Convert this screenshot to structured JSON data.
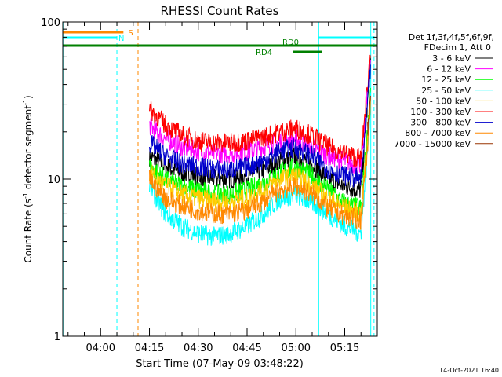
{
  "chart_data": {
    "type": "line",
    "title": "RHESSI Count Rates",
    "xlabel": "Start Time (07-May-09 03:48:22)",
    "ylabel_parts": [
      "Count Rate (s",
      "-1",
      " detector segment",
      "-1",
      ")"
    ],
    "ylog": true,
    "ylim": [
      1,
      100
    ],
    "y_ticks": [
      {
        "value": 1,
        "label": "1"
      },
      {
        "value": 10,
        "label": "10"
      },
      {
        "value": 100,
        "label": "100"
      }
    ],
    "xlim_minutes": [
      "03:48:22",
      "05:25:00"
    ],
    "x_ticks": [
      "04:00",
      "04:15",
      "04:30",
      "04:45",
      "05:00",
      "05:15"
    ],
    "legend_header": [
      "Det 1f,3f,4f,5f,6f,9f,",
      "FDecim 1, Att 0"
    ],
    "series": [
      {
        "name": "3 - 6 keV",
        "color": "#000000",
        "x": [
          "04:15",
          "04:20",
          "04:25",
          "04:30",
          "04:35",
          "04:40",
          "04:45",
          "04:50",
          "04:55",
          "05:00",
          "05:05",
          "05:10",
          "05:15",
          "05:20",
          "05:22",
          "05:23"
        ],
        "values": [
          14,
          12,
          11,
          10.5,
          10,
          10,
          10.5,
          11.5,
          13,
          14,
          12.5,
          10,
          9,
          8.5,
          30,
          60
        ]
      },
      {
        "name": "6 - 12 keV",
        "color": "#ff00ff",
        "x": [
          "04:15",
          "04:20",
          "04:25",
          "04:30",
          "04:35",
          "04:40",
          "04:45",
          "04:50",
          "04:55",
          "05:00",
          "05:05",
          "05:10",
          "05:15",
          "05:20",
          "05:22",
          "05:23"
        ],
        "values": [
          22,
          18,
          16,
          15,
          14.5,
          14.5,
          15,
          16,
          17.5,
          18,
          16,
          14,
          13,
          12,
          35,
          62
        ]
      },
      {
        "name": "12 - 25 keV",
        "color": "#00ff00",
        "x": [
          "04:15",
          "04:20",
          "04:25",
          "04:30",
          "04:35",
          "04:40",
          "04:45",
          "04:50",
          "04:55",
          "05:00",
          "05:05",
          "05:10",
          "05:15",
          "05:20",
          "05:22",
          "05:23"
        ],
        "values": [
          12,
          10,
          9,
          8.5,
          8,
          8,
          8.5,
          9.5,
          11,
          12,
          10.5,
          8.5,
          7,
          6.5,
          20,
          40
        ]
      },
      {
        "name": "25 - 50 keV",
        "color": "#00ffff",
        "x": [
          "04:15",
          "04:20",
          "04:25",
          "04:30",
          "04:35",
          "04:40",
          "04:45",
          "04:50",
          "04:55",
          "05:00",
          "05:05",
          "05:10",
          "05:15",
          "05:20",
          "05:22",
          "05:23"
        ],
        "values": [
          9,
          6,
          5,
          4.5,
          4.3,
          4.5,
          5,
          6,
          7.5,
          8,
          7,
          6,
          5,
          4.5,
          15,
          35
        ]
      },
      {
        "name": "50 - 100 keV",
        "color": "#ffcc00",
        "x": [
          "04:15",
          "04:20",
          "04:25",
          "04:30",
          "04:35",
          "04:40",
          "04:45",
          "04:50",
          "04:55",
          "05:00",
          "05:05",
          "05:10",
          "05:15",
          "05:20",
          "05:22",
          "05:23"
        ],
        "values": [
          11,
          9,
          8,
          7.5,
          7.2,
          7.2,
          7.5,
          8.5,
          10,
          10.5,
          9,
          7.5,
          6.5,
          6,
          18,
          38
        ]
      },
      {
        "name": "100 - 300 keV",
        "color": "#ff0000",
        "x": [
          "04:15",
          "04:20",
          "04:25",
          "04:30",
          "04:35",
          "04:40",
          "04:45",
          "04:50",
          "04:55",
          "05:00",
          "05:05",
          "05:10",
          "05:15",
          "05:20",
          "05:22",
          "05:23"
        ],
        "values": [
          28,
          22,
          19,
          17.5,
          17,
          17,
          17.5,
          18.5,
          20,
          21,
          19,
          16,
          14.5,
          13.5,
          40,
          65
        ]
      },
      {
        "name": "300 - 800 keV",
        "color": "#0000cc",
        "x": [
          "04:15",
          "04:20",
          "04:25",
          "04:30",
          "04:35",
          "04:40",
          "04:45",
          "04:50",
          "04:55",
          "05:00",
          "05:05",
          "05:10",
          "05:15",
          "05:20",
          "05:22",
          "05:23"
        ],
        "values": [
          17,
          14,
          12.5,
          12,
          11.5,
          11.5,
          12,
          13,
          15,
          16,
          14,
          11.5,
          10.5,
          10,
          30,
          55
        ]
      },
      {
        "name": "800 - 7000 keV",
        "color": "#ff8800",
        "x": [
          "04:15",
          "04:20",
          "04:25",
          "04:30",
          "04:35",
          "04:40",
          "04:45",
          "04:50",
          "04:55",
          "05:00",
          "05:05",
          "05:10",
          "05:15",
          "05:20",
          "05:22",
          "05:23"
        ],
        "values": [
          10,
          7.5,
          6.8,
          6.3,
          6,
          6,
          6.3,
          7.2,
          8.5,
          9,
          8,
          6.5,
          5.8,
          5.5,
          16,
          36
        ]
      },
      {
        "name": "7000 - 15000 keV",
        "color": "#993300",
        "x": [
          "05:22",
          "05:23"
        ],
        "values": [
          20,
          30
        ]
      }
    ],
    "flag_bars": [
      {
        "label": "S",
        "color": "#ff8800",
        "start": "03:48:22",
        "end": "04:07",
        "level": 0
      },
      {
        "label": "N",
        "color": "#00ffff",
        "start": "03:48:22",
        "end": "04:05",
        "level": 1
      },
      {
        "label": "N",
        "color": "#00ffff",
        "start": "05:07",
        "end": "05:24",
        "level": 1
      },
      {
        "label": "RD0",
        "color": "#008000",
        "start": "03:48:22",
        "end": "05:25",
        "level": 2
      },
      {
        "label": "RD4",
        "color": "#008000",
        "start": "04:59",
        "end": "05:08",
        "level": 3
      }
    ],
    "vlines": [
      {
        "time": "03:48:40",
        "color": "#00ffff",
        "style": "solid"
      },
      {
        "time": "04:05",
        "color": "#00ffff",
        "style": "dashed"
      },
      {
        "time": "04:11:30",
        "color": "#ff8800",
        "style": "dashed"
      },
      {
        "time": "05:07",
        "color": "#00ffff",
        "style": "solid"
      },
      {
        "time": "05:23",
        "color": "#00ffff",
        "style": "solid"
      },
      {
        "time": "05:24",
        "color": "#00ffff",
        "style": "dashed"
      }
    ],
    "grid": false,
    "legend_position": "right"
  },
  "footer_date": "14-Oct-2021 16:40"
}
